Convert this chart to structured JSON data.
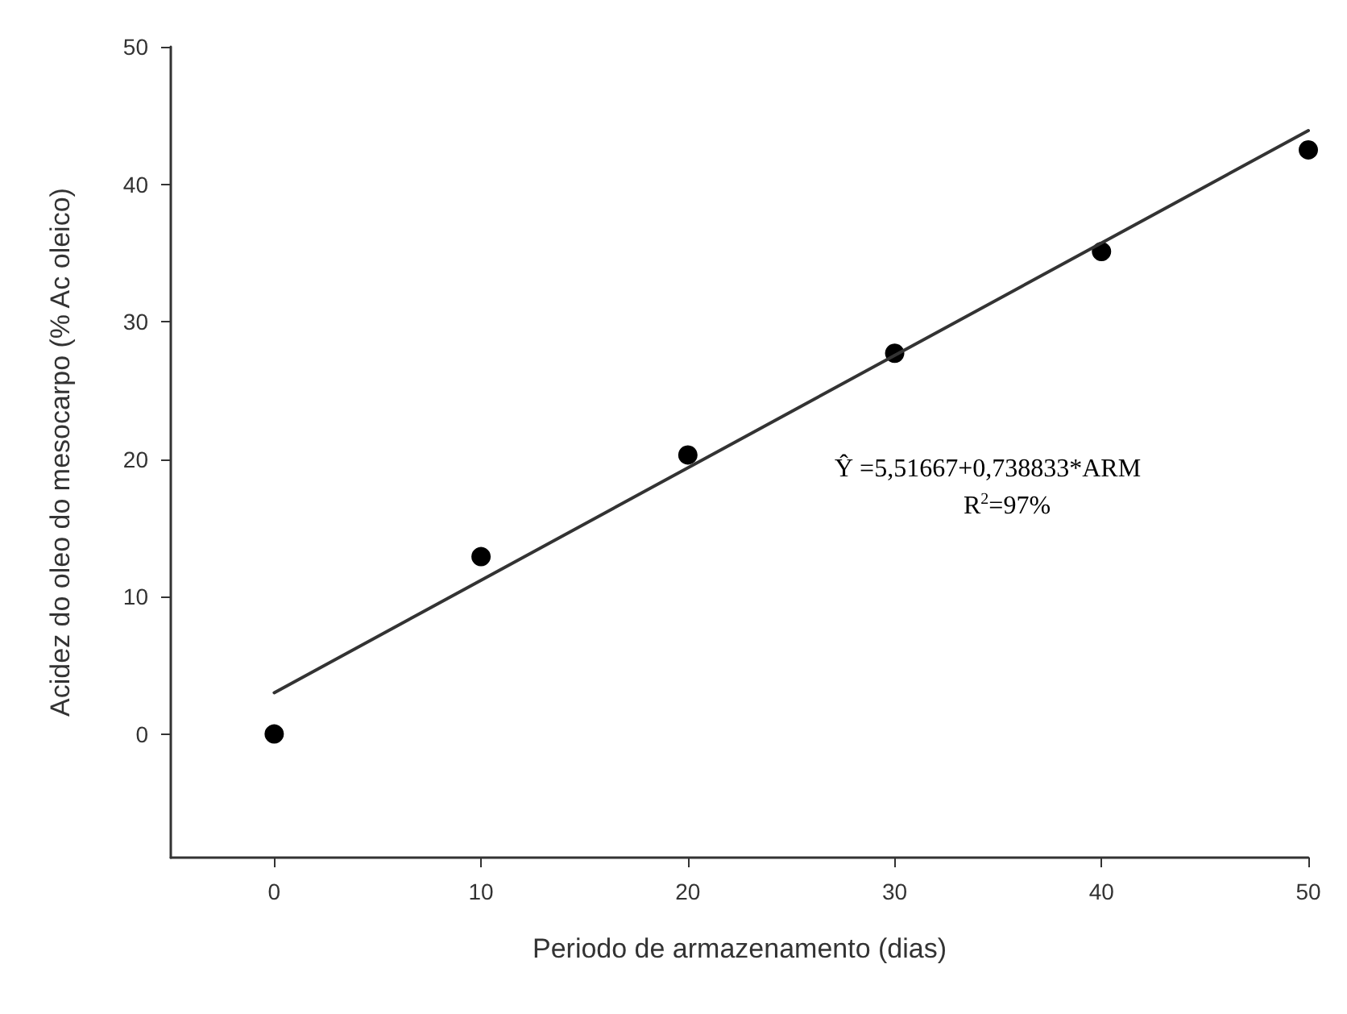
{
  "chart_data": {
    "type": "scatter",
    "xlabel": "Periodo de armazenamento (dias)",
    "ylabel": "Acidez do oleo do mesocarpo (% Ac oleico)",
    "x": [
      0,
      10,
      20,
      30,
      40,
      50
    ],
    "series": [
      {
        "color": "#000000",
        "marker": "circle",
        "values": [
          0,
          12.9,
          20.3,
          27.7,
          35.1,
          42.5
        ]
      },
      {
        "type": "line",
        "color": "#333333",
        "line_style": "solid",
        "marker": "none",
        "x": [
          0,
          50
        ],
        "values": [
          3.0,
          43.9
        ]
      }
    ],
    "xlim": [
      -5,
      50
    ],
    "xticks": [
      0,
      10,
      20,
      30,
      40,
      50
    ],
    "ylim": [
      -9,
      50
    ],
    "yticks": [
      0,
      10,
      20,
      30,
      40,
      50
    ],
    "grid": false,
    "annotations": [
      "Ŷ =5,51667+0,738833*ARM",
      "R$^{2}$=97%"
    ]
  }
}
